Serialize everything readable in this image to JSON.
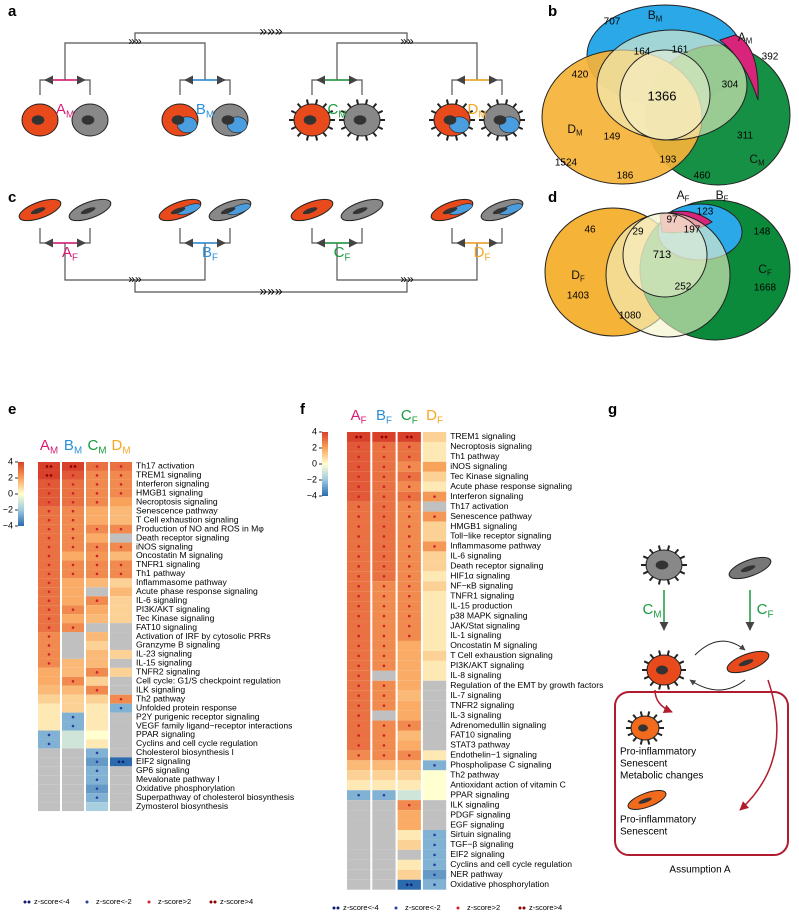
{
  "groups_m": [
    {
      "letter": "A",
      "sub": "M",
      "color": "#d81b74"
    },
    {
      "letter": "B",
      "sub": "M",
      "color": "#2b8fd9"
    },
    {
      "letter": "C",
      "sub": "M",
      "color": "#1a9a3e"
    },
    {
      "letter": "D",
      "sub": "M",
      "color": "#f5a623"
    }
  ],
  "groups_f": [
    {
      "letter": "A",
      "sub": "F",
      "color": "#d81b74"
    },
    {
      "letter": "B",
      "sub": "F",
      "color": "#2b8fd9"
    },
    {
      "letter": "C",
      "sub": "F",
      "color": "#1a9a3e"
    },
    {
      "letter": "D",
      "sub": "F",
      "color": "#f5a623"
    }
  ],
  "panel_labels": [
    "a",
    "b",
    "c",
    "d",
    "e",
    "f",
    "g"
  ],
  "venn_b": {
    "counts": [
      707,
      161,
      164,
      420,
      392,
      304,
      1366,
      149,
      311,
      1524,
      193,
      186,
      460
    ]
  },
  "venn_d": {
    "counts": [
      123,
      97,
      46,
      29,
      197,
      148,
      713,
      1403,
      1668,
      252,
      1080
    ]
  },
  "scale_ticks": [
    4,
    2,
    0,
    {
      "value": -2,
      "label": "−2"
    },
    {
      "value": -4,
      "label": "−4"
    }
  ],
  "legend": [
    "z-score<-4",
    "z-score<-2",
    "z-score>2",
    "z-score>4"
  ],
  "heatmap_e": {
    "rows": [
      {
        "name": "Th17 activation",
        "values": [
          4.5,
          4.2,
          3,
          3
        ]
      },
      {
        "name": "TREM1 signaling",
        "values": [
          4.5,
          3.5,
          2.5,
          2.5
        ]
      },
      {
        "name": "Interferon signaling",
        "values": [
          3.5,
          3,
          2.5,
          2.5
        ]
      },
      {
        "name": "HMGB1 signaling",
        "values": [
          3.5,
          3,
          2.5,
          2.5
        ]
      },
      {
        "name": "Necroptosis signaling",
        "values": [
          3.5,
          3,
          2.5,
          2
        ]
      },
      {
        "name": "Senescence pathway",
        "values": [
          3,
          2.5,
          1.8,
          1.5
        ]
      },
      {
        "name": "T Cell exhaustion signaling",
        "values": [
          3,
          2.5,
          1.8,
          1.5
        ]
      },
      {
        "name": "Production of NO and ROS in Mφ",
        "values": [
          3,
          2.5,
          2.5,
          2.5
        ]
      },
      {
        "name": "Death receptor signaling",
        "values": [
          3,
          2.5,
          1.8,
          null
        ]
      },
      {
        "name": "iNOS signaling",
        "values": [
          3,
          2.5,
          2.5,
          2.5
        ]
      },
      {
        "name": "Oncostatin M signaling",
        "values": [
          3,
          1.8,
          2.2,
          1.5
        ]
      },
      {
        "name": "TNFR1 signaling",
        "values": [
          3,
          2.5,
          2.5,
          2.5
        ]
      },
      {
        "name": "Th1 pathway",
        "values": [
          3,
          2.5,
          2.5,
          2.5
        ]
      },
      {
        "name": "Inflammasome pathway",
        "values": [
          3,
          1.8,
          1.5,
          1
        ]
      },
      {
        "name": "Acute phase response signaling",
        "values": [
          3,
          1.8,
          null,
          1.5
        ]
      },
      {
        "name": "IL-6 signaling",
        "values": [
          3,
          1.8,
          2.5,
          1
        ]
      },
      {
        "name": "PI3K/AKT signaling",
        "values": [
          3,
          2.5,
          1.8,
          1
        ]
      },
      {
        "name": "Tec Kinase signaling",
        "values": [
          3,
          1.8,
          1.5,
          1
        ]
      },
      {
        "name": "FAT10 signaling",
        "values": [
          3,
          2.5,
          null,
          null
        ]
      },
      {
        "name": "Activation of IRF by cytosolic PRRs",
        "values": [
          2.5,
          null,
          1.5,
          null
        ]
      },
      {
        "name": "Granzyme B signaling",
        "values": [
          2.5,
          null,
          1,
          null
        ]
      },
      {
        "name": "IL-23 signaling",
        "values": [
          2.5,
          null,
          1.5,
          1
        ]
      },
      {
        "name": "IL-15 signaling",
        "values": [
          2.5,
          1.5,
          1.5,
          null
        ]
      },
      {
        "name": "TNFR2 signaling",
        "values": [
          1.8,
          1.5,
          2.5,
          1
        ]
      },
      {
        "name": "Cell cycle: G1/S checkpoint regulation",
        "values": [
          1.8,
          2.5,
          1,
          null
        ]
      },
      {
        "name": "ILK signaling",
        "values": [
          1.5,
          1.5,
          2.5,
          null
        ]
      },
      {
        "name": "Th2 pathway",
        "values": [
          1,
          1,
          1,
          2.5
        ]
      },
      {
        "name": "Unfolded protein response",
        "values": [
          0.5,
          1,
          0.5,
          -2.5
        ]
      },
      {
        "name": "P2Y purigenic receptor signaling",
        "values": [
          0.5,
          -2.5,
          0.5,
          null
        ]
      },
      {
        "name": "VEGF family ligand−receptor interactions",
        "values": [
          0.5,
          -2.5,
          0.5,
          null
        ]
      },
      {
        "name": "PPAR signaling",
        "values": [
          -2.5,
          -1,
          0,
          null
        ]
      },
      {
        "name": "Cyclins and cell cycle regulation",
        "values": [
          -2.5,
          -1,
          0.5,
          null
        ]
      },
      {
        "name": "Cholesterol biosynthesis I",
        "values": [
          null,
          null,
          -2.5,
          null
        ]
      },
      {
        "name": "EIF2 signaling",
        "values": [
          null,
          null,
          -3,
          -4.5
        ]
      },
      {
        "name": "GP6 signaling",
        "values": [
          null,
          null,
          -2.5,
          null
        ]
      },
      {
        "name": "Mevalonate pathway I",
        "values": [
          null,
          null,
          -2.5,
          null
        ]
      },
      {
        "name": "Oxidative phosphorylation",
        "values": [
          null,
          null,
          -3,
          null
        ]
      },
      {
        "name": "Superpathway of cholesterol biosynthesis",
        "values": [
          null,
          null,
          -2.5,
          null
        ]
      },
      {
        "name": "Zymosterol biosynthesis",
        "values": [
          null,
          null,
          -1.8,
          null
        ]
      }
    ]
  },
  "heatmap_f": {
    "rows": [
      {
        "name": "TREM1 signaling",
        "values": [
          4.5,
          4.5,
          4.5,
          1
        ]
      },
      {
        "name": "Necroptosis signaling",
        "values": [
          3.5,
          3,
          3,
          0.5
        ]
      },
      {
        "name": "Th1 pathway",
        "values": [
          3.5,
          3,
          3,
          0.5
        ]
      },
      {
        "name": "iNOS signaling",
        "values": [
          3.5,
          3,
          2.5,
          2
        ]
      },
      {
        "name": "Tec Kinase signaling",
        "values": [
          3.5,
          3,
          3,
          1
        ]
      },
      {
        "name": "Acute phase response signaling",
        "values": [
          3.5,
          3,
          2.5,
          0.5
        ]
      },
      {
        "name": "Interferon signaling",
        "values": [
          3.5,
          3,
          3,
          2.2
        ]
      },
      {
        "name": "Th17 activation",
        "values": [
          3,
          3,
          2.5,
          null
        ]
      },
      {
        "name": "Senescence pathway",
        "values": [
          3,
          3,
          2.5,
          2.2
        ]
      },
      {
        "name": "HMGB1 signaling",
        "values": [
          3,
          3,
          2.5,
          1
        ]
      },
      {
        "name": "Toll−like receptor signaling",
        "values": [
          3,
          3,
          2.5,
          1
        ]
      },
      {
        "name": "Inflammasome pathway",
        "values": [
          3,
          3,
          2.5,
          2.2
        ]
      },
      {
        "name": "IL-6 signaling",
        "values": [
          3,
          3,
          2.5,
          1
        ]
      },
      {
        "name": "Death receptor signaling",
        "values": [
          3,
          3,
          2.5,
          1
        ]
      },
      {
        "name": "HIF1α signaling",
        "values": [
          3,
          3,
          2.5,
          0.5
        ]
      },
      {
        "name": "NF−κB signaling",
        "values": [
          3,
          2.5,
          2.5,
          1
        ]
      },
      {
        "name": "TNFR1 signaling",
        "values": [
          3,
          2.5,
          2.5,
          0.5
        ]
      },
      {
        "name": "IL-15 production",
        "values": [
          3,
          2.5,
          2.5,
          0.5
        ]
      },
      {
        "name": "p38 MAPK signaling",
        "values": [
          3,
          2.5,
          2.5,
          0.5
        ]
      },
      {
        "name": "JAK/Stat signaling",
        "values": [
          3,
          2.5,
          2.5,
          0.5
        ]
      },
      {
        "name": "IL-1 signaling",
        "values": [
          3,
          2.5,
          2.5,
          0.5
        ]
      },
      {
        "name": "Oncostatin M signaling",
        "values": [
          3,
          2.5,
          1.8,
          0.5
        ]
      },
      {
        "name": "T Cell exhaustion signaling",
        "values": [
          3,
          2.5,
          1.8,
          1
        ]
      },
      {
        "name": "PI3K/AKT signaling",
        "values": [
          3,
          2.5,
          1.8,
          0.5
        ]
      },
      {
        "name": "IL-8 signaling",
        "values": [
          3,
          null,
          1.8,
          0.5
        ]
      },
      {
        "name": "Regulation of the EMT by growth factors",
        "values": [
          3,
          2.5,
          1.8,
          null
        ]
      },
      {
        "name": "IL-7 signaling",
        "values": [
          3,
          2.5,
          1.5,
          null
        ]
      },
      {
        "name": "TNFR2 signaling",
        "values": [
          3,
          2.5,
          1.8,
          null
        ]
      },
      {
        "name": "IL-3 signaling",
        "values": [
          3,
          null,
          1.8,
          null
        ]
      },
      {
        "name": "Adrenomedullin signaling",
        "values": [
          3,
          2.5,
          2.5,
          null
        ]
      },
      {
        "name": "FAT10 signaling",
        "values": [
          3,
          2.5,
          1.5,
          null
        ]
      },
      {
        "name": "STAT3 pathway",
        "values": [
          3,
          2.5,
          1.8,
          null
        ]
      },
      {
        "name": "Endothelin−1 signaling",
        "values": [
          2.5,
          2.5,
          2.5,
          0.5
        ]
      },
      {
        "name": "Phospholipase C signaling",
        "values": [
          1.5,
          1.5,
          1.5,
          -2.5
        ]
      },
      {
        "name": "Th2 pathway",
        "values": [
          1,
          1,
          1,
          0
        ]
      },
      {
        "name": "Antioxidant action of vitamin C",
        "values": [
          0.5,
          0.5,
          0.5,
          0
        ]
      },
      {
        "name": "PPAR signaling",
        "values": [
          -2.5,
          -2.5,
          -1,
          0
        ]
      },
      {
        "name": "ILK signaling",
        "values": [
          null,
          null,
          2.5,
          null
        ]
      },
      {
        "name": "PDGF signaling",
        "values": [
          null,
          null,
          1.8,
          null
        ]
      },
      {
        "name": "EGF signaling",
        "values": [
          null,
          null,
          1.8,
          null
        ]
      },
      {
        "name": "Sirtuin signaling",
        "values": [
          null,
          null,
          0.5,
          -2.5
        ]
      },
      {
        "name": "TGF−β signaling",
        "values": [
          null,
          null,
          1,
          -2.5
        ]
      },
      {
        "name": "EIF2 signaling",
        "values": [
          null,
          null,
          null,
          -2.5
        ]
      },
      {
        "name": "Cyclins and cell cycle regulation",
        "values": [
          null,
          null,
          0.5,
          -2.5
        ]
      },
      {
        "name": "NER pathway",
        "values": [
          null,
          null,
          1,
          -3
        ]
      },
      {
        "name": "Oxidative phosphorylation",
        "values": [
          null,
          null,
          -4.5,
          -2.5
        ]
      }
    ]
  },
  "panel_g": {
    "lines": [
      "Pro-inflammatory",
      "Senescent",
      "Metabolic changes",
      "Pro-inflammatory",
      "Senescent"
    ],
    "caption": "Assumption A"
  }
}
